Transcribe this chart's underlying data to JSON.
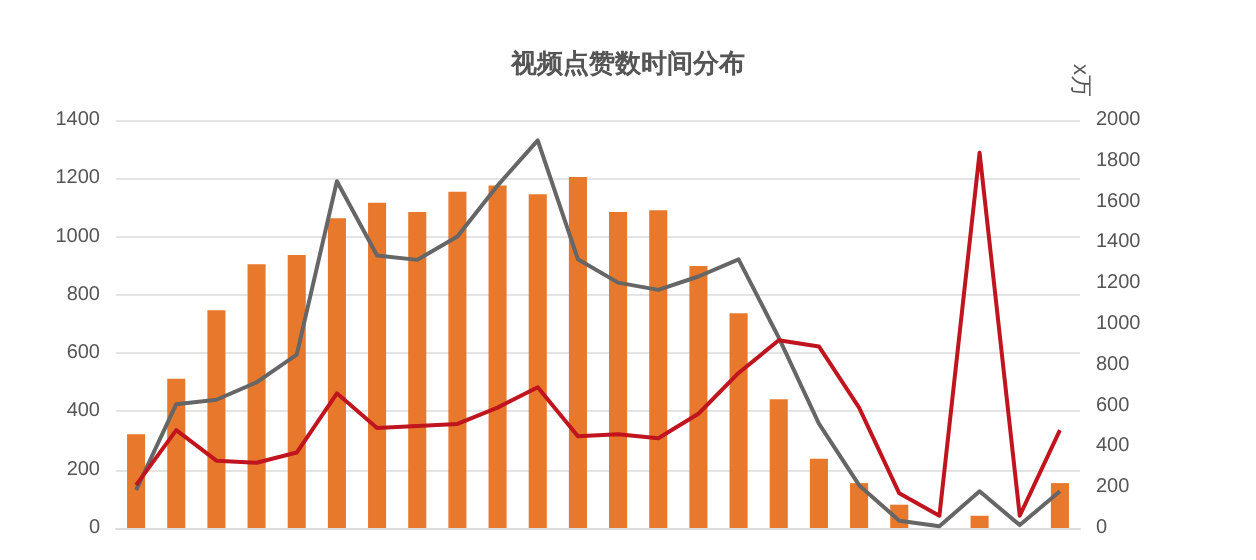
{
  "chart_data": {
    "type": "bar",
    "title": "视频点赞数时间分布",
    "y2label": "x万",
    "categories": [
      null,
      null,
      null,
      null,
      null,
      null,
      null,
      null,
      null,
      null,
      null,
      null,
      null,
      null,
      null,
      null,
      null,
      null,
      null,
      null,
      null,
      null,
      null,
      null
    ],
    "series": [
      {
        "color": "#e8782c",
        "values": [
          322,
          512,
          747,
          905,
          937,
          1063,
          1116,
          1084,
          1154,
          1175,
          1145,
          1204,
          1084,
          1090,
          899,
          737,
          442,
          238,
          154,
          80,
          0,
          42,
          0,
          154
        ]
      },
      {
        "type": "line",
        "color": "#666666",
        "values": [
          130,
          425,
          440,
          500,
          595,
          1190,
          935,
          920,
          1000,
          1175,
          1330,
          922,
          842,
          817,
          863,
          922,
          653,
          358,
          147,
          25,
          6,
          126,
          10,
          126
        ]
      },
      {
        "type": "line",
        "axis": "y2",
        "color": "#c0141e",
        "values": [
          210,
          480,
          330,
          320,
          370,
          660,
          490,
          500,
          510,
          590,
          690,
          450,
          460,
          440,
          560,
          760,
          920,
          890,
          590,
          170,
          60,
          1840,
          60,
          480
        ]
      }
    ],
    "ylim": [
      0,
      1400
    ],
    "yticks": [
      0,
      200,
      400,
      600,
      800,
      1000,
      1200,
      1400
    ],
    "y2lim": [
      0,
      2000
    ],
    "y2ticks": [
      0,
      200,
      400,
      600,
      800,
      1000,
      1200,
      1400,
      1600,
      1800,
      2000
    ],
    "grid": "y",
    "marker": "none"
  }
}
